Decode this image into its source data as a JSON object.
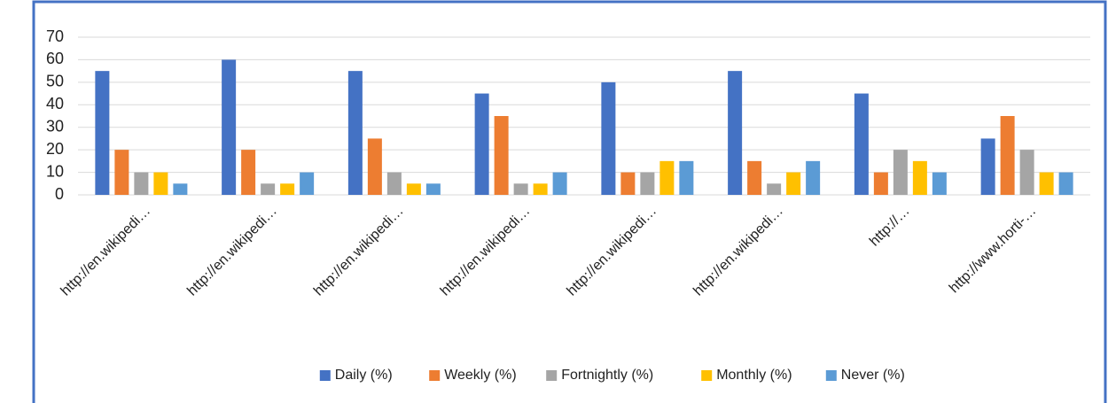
{
  "chart_data": {
    "type": "bar",
    "categories": [
      "http://en.wikipedi…",
      "http://en.wikipedi…",
      "http://en.wikipedi…",
      "http://en.wikipedi…",
      "http://en.wikipedi…",
      "http://en.wikipedi…",
      "http://…",
      "http://www.horti-…"
    ],
    "series": [
      {
        "name": "Daily (%)",
        "color": "#4472c4",
        "values": [
          55,
          60,
          55,
          45,
          50,
          55,
          45,
          25
        ]
      },
      {
        "name": "Weekly (%)",
        "color": "#ed7d31",
        "values": [
          20,
          20,
          25,
          35,
          10,
          15,
          10,
          35
        ]
      },
      {
        "name": "Fortnightly (%)",
        "color": "#a5a5a5",
        "values": [
          10,
          5,
          10,
          5,
          10,
          5,
          20,
          20
        ]
      },
      {
        "name": "Monthly (%)",
        "color": "#ffc000",
        "values": [
          10,
          5,
          5,
          5,
          15,
          10,
          15,
          10
        ]
      },
      {
        "name": "Never (%)",
        "color": "#5b9bd5",
        "values": [
          5,
          10,
          5,
          10,
          15,
          15,
          10,
          10
        ]
      }
    ],
    "ylim": [
      0,
      70
    ],
    "yticks": [
      0,
      10,
      20,
      30,
      40,
      50,
      60,
      70
    ],
    "grid": true,
    "legend": "bottom"
  }
}
